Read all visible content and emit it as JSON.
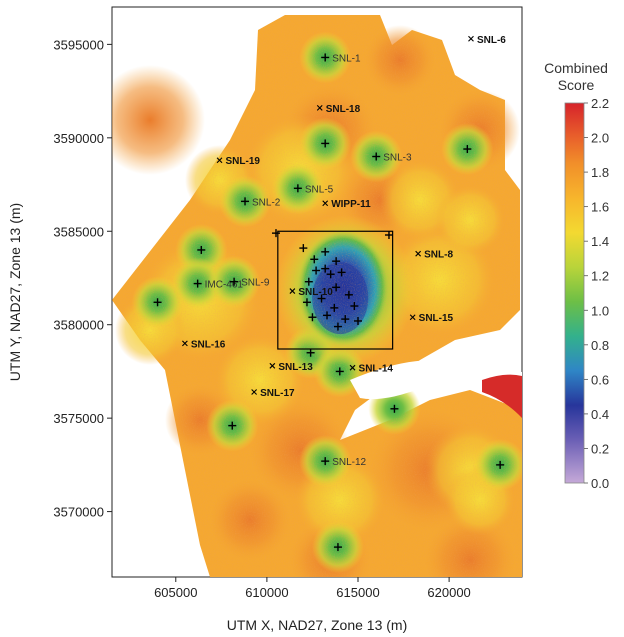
{
  "map": {
    "xlabel": "UTM X, NAD27, Zone 13 (m)",
    "ylabel": "UTM Y, NAD27, Zone 13 (m)",
    "xlim": [
      601500,
      624000
    ],
    "ylim": [
      3566500,
      3597000
    ],
    "x_ticks": [
      {
        "value": 605000,
        "label": "605000"
      },
      {
        "value": 610000,
        "label": "610000"
      },
      {
        "value": 615000,
        "label": "615000"
      },
      {
        "value": 620000,
        "label": "620000"
      }
    ],
    "y_ticks": [
      {
        "value": 3570000,
        "label": "3570000"
      },
      {
        "value": 3575000,
        "label": "3575000"
      },
      {
        "value": 3580000,
        "label": "3580000"
      },
      {
        "value": 3585000,
        "label": "3585000"
      },
      {
        "value": 3590000,
        "label": "3590000"
      },
      {
        "value": 3595000,
        "label": "3595000"
      }
    ],
    "wells_x": [
      {
        "label": "SNL-6",
        "x": 621200,
        "y": 3595300,
        "bold": true
      },
      {
        "label": "SNL-18",
        "x": 612900,
        "y": 3591600,
        "bold": true
      },
      {
        "label": "SNL-19",
        "x": 607400,
        "y": 3588800,
        "bold": true
      },
      {
        "label": "WIPP-11",
        "x": 613200,
        "y": 3586500,
        "bold": true
      },
      {
        "label": "SNL-8",
        "x": 618300,
        "y": 3583800,
        "bold": true
      },
      {
        "label": "SNL-10",
        "x": 611400,
        "y": 3581800,
        "bold": true
      },
      {
        "label": "SNL-15",
        "x": 618000,
        "y": 3580400,
        "bold": true
      },
      {
        "label": "SNL-16",
        "x": 605500,
        "y": 3579000,
        "bold": true
      },
      {
        "label": "SNL-13",
        "x": 610300,
        "y": 3577800,
        "bold": true
      },
      {
        "label": "SNL-14",
        "x": 614700,
        "y": 3577700,
        "bold": true
      },
      {
        "label": "SNL-17",
        "x": 609300,
        "y": 3576400,
        "bold": true
      }
    ],
    "wells_plus": [
      {
        "label": "SNL-1",
        "x": 613200,
        "y": 3594300
      },
      {
        "label": "",
        "x": 613200,
        "y": 3589700
      },
      {
        "label": "SNL-3",
        "x": 616000,
        "y": 3589000
      },
      {
        "label": "",
        "x": 621000,
        "y": 3589400
      },
      {
        "label": "SNL-5",
        "x": 611700,
        "y": 3587300
      },
      {
        "label": "SNL-2",
        "x": 608800,
        "y": 3586600
      },
      {
        "label": "",
        "x": 610500,
        "y": 3584900
      },
      {
        "label": "",
        "x": 616700,
        "y": 3584800
      },
      {
        "label": "",
        "x": 606400,
        "y": 3584000
      },
      {
        "label": "IMC-461",
        "x": 606200,
        "y": 3582200
      },
      {
        "label": "SNL-9",
        "x": 608200,
        "y": 3582300
      },
      {
        "label": "",
        "x": 604000,
        "y": 3581200
      },
      {
        "label": "",
        "x": 612400,
        "y": 3578500
      },
      {
        "label": "",
        "x": 614000,
        "y": 3577500
      },
      {
        "label": "",
        "x": 617000,
        "y": 3575500
      },
      {
        "label": "",
        "x": 608100,
        "y": 3574600
      },
      {
        "label": "SNL-12",
        "x": 613200,
        "y": 3572700
      },
      {
        "label": "",
        "x": 622800,
        "y": 3572500
      },
      {
        "label": "",
        "x": 613900,
        "y": 3568100
      }
    ],
    "cluster_plus": [
      [
        612000,
        3584100
      ],
      [
        612600,
        3583500
      ],
      [
        613200,
        3583900
      ],
      [
        613800,
        3583400
      ],
      [
        614100,
        3582800
      ],
      [
        613500,
        3582700
      ],
      [
        612300,
        3582300
      ],
      [
        613800,
        3582000
      ],
      [
        614500,
        3581600
      ],
      [
        613000,
        3581400
      ],
      [
        612200,
        3581200
      ],
      [
        614800,
        3581000
      ],
      [
        613700,
        3580900
      ],
      [
        613300,
        3580500
      ],
      [
        612500,
        3580400
      ],
      [
        614300,
        3580300
      ],
      [
        615000,
        3580200
      ],
      [
        613900,
        3579900
      ],
      [
        613200,
        3583000
      ],
      [
        612700,
        3582900
      ]
    ],
    "study_box": {
      "x1": 610600,
      "x2": 616900,
      "y1": 3578700,
      "y2": 3585000
    }
  },
  "legend": {
    "title_line1": "Combined",
    "title_line2": "Score",
    "min": 0.0,
    "max": 2.2,
    "ticks": [
      "0.0",
      "0.2",
      "0.4",
      "0.6",
      "0.8",
      "1.0",
      "1.2",
      "1.4",
      "1.6",
      "1.8",
      "2.0",
      "2.2"
    ],
    "stops": [
      {
        "value": 0.0,
        "color": "#c5a9d8"
      },
      {
        "value": 0.25,
        "color": "#6b5fb5"
      },
      {
        "value": 0.45,
        "color": "#27359b"
      },
      {
        "value": 0.65,
        "color": "#2f86c6"
      },
      {
        "value": 0.85,
        "color": "#33b18c"
      },
      {
        "value": 1.05,
        "color": "#6dbf46"
      },
      {
        "value": 1.25,
        "color": "#b9d43a"
      },
      {
        "value": 1.45,
        "color": "#f3d931"
      },
      {
        "value": 1.65,
        "color": "#f7b52c"
      },
      {
        "value": 1.85,
        "color": "#f18f2a"
      },
      {
        "value": 2.0,
        "color": "#e9612b"
      },
      {
        "value": 2.2,
        "color": "#d6232b"
      }
    ]
  },
  "colors": {
    "base": "#f6ad31",
    "orange": "#ee8d2e",
    "yellow": "#f2cd3a",
    "green": "#5bb548",
    "blue": "#2c43a4",
    "red": "#d52a2a"
  }
}
